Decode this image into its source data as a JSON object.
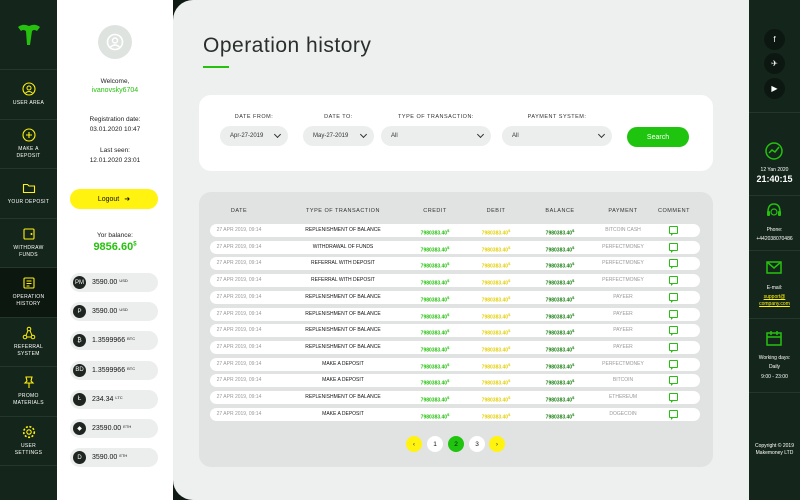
{
  "leftnav": {
    "items": [
      {
        "label": "User area",
        "icon": "user-icon"
      },
      {
        "label": "Make a deposit",
        "icon": "plus-icon"
      },
      {
        "label": "Your deposit",
        "icon": "folder-icon"
      },
      {
        "label": "Withdraw funds",
        "icon": "wallet-icon"
      },
      {
        "label": "Operation history",
        "icon": "history-icon"
      },
      {
        "label": "Referral system",
        "icon": "network-icon"
      },
      {
        "label": "Promo materials",
        "icon": "pin-icon"
      },
      {
        "label": "User settings",
        "icon": "gear-icon"
      }
    ]
  },
  "user": {
    "welcome": "Welcome,",
    "name": "ivanovsky6704",
    "reg_label": "Registration date:",
    "reg_date": "03.01.2020 10:47",
    "seen_label": "Last seen:",
    "seen_date": "12.01.2020 23:01",
    "logout": "Logout",
    "balance_label": "Yor balance:",
    "balance": "9856.60",
    "coins": [
      {
        "glyph": "PM",
        "value": "3590.00",
        "currency": "USD"
      },
      {
        "glyph": "P",
        "value": "3590.00",
        "currency": "USD"
      },
      {
        "glyph": "₿",
        "value": "1.3599966",
        "currency": "BTC"
      },
      {
        "glyph": "BD",
        "value": "1.3599966",
        "currency": "BTC"
      },
      {
        "glyph": "Ł",
        "value": "234.34",
        "currency": "LTC"
      },
      {
        "glyph": "◆",
        "value": "23590.00",
        "currency": "ETH"
      },
      {
        "glyph": "D",
        "value": "3590.00",
        "currency": "ETH"
      }
    ]
  },
  "main": {
    "title": "Operation history",
    "filters": {
      "date_from_label": "Date from:",
      "date_from": "Apr-27-2019",
      "date_to_label": "Date to:",
      "date_to": "May-27-2019",
      "type_label": "Type of transaction:",
      "type": "All",
      "payment_label": "Payment system:",
      "payment": "All",
      "search": "Search"
    },
    "table": {
      "headers": [
        "Date",
        "Type of transaction",
        "Credit",
        "Debit",
        "Balance",
        "Payment",
        "Comment"
      ],
      "rows": [
        {
          "date": "27 APR 2019, 09:14",
          "type": "Replenishment of balance",
          "credit": "7980383.40",
          "debit": "7980383.40",
          "balance": "7980383.40",
          "payment": "Bitcoin cash"
        },
        {
          "date": "27 APR 2019, 09:14",
          "type": "Withdrawal of funds",
          "credit": "7980383.40",
          "debit": "7980383.40",
          "balance": "7980383.40",
          "payment": "Perfectmoney"
        },
        {
          "date": "27 APR 2019, 09:14",
          "type": "Referral with deposit",
          "credit": "7980383.40",
          "debit": "7980383.40",
          "balance": "7980383.40",
          "payment": "Perfectmoney"
        },
        {
          "date": "27 APR 2019, 09:14",
          "type": "Referral with deposit",
          "credit": "7980383.40",
          "debit": "7980383.40",
          "balance": "7980383.40",
          "payment": "Perfectmoney"
        },
        {
          "date": "27 APR 2019, 09:14",
          "type": "Replenishment of balance",
          "credit": "7980383.40",
          "debit": "7980383.40",
          "balance": "7980383.40",
          "payment": "Payeer"
        },
        {
          "date": "27 APR 2019, 09:14",
          "type": "Replenishment of balance",
          "credit": "7980383.40",
          "debit": "7980383.40",
          "balance": "7980383.40",
          "payment": "Payeer"
        },
        {
          "date": "27 APR 2019, 09:14",
          "type": "Replenishment of balance",
          "credit": "7980383.40",
          "debit": "7980383.40",
          "balance": "7980383.40",
          "payment": "Payeer"
        },
        {
          "date": "27 APR 2019, 09:14",
          "type": "Replenishment of balance",
          "credit": "7980383.40",
          "debit": "7980383.40",
          "balance": "7980383.40",
          "payment": "Payeer"
        },
        {
          "date": "27 APR 2019, 09:14",
          "type": "Make a deposit",
          "credit": "7980383.40",
          "debit": "7980383.40",
          "balance": "7980383.40",
          "payment": "Perfectmoney"
        },
        {
          "date": "27 APR 2019, 09:14",
          "type": "Make a deposit",
          "credit": "7980383.40",
          "debit": "7980383.40",
          "balance": "7980383.40",
          "payment": "Bitcoin"
        },
        {
          "date": "27 APR 2019, 09:14",
          "type": "Replenishment of balance",
          "credit": "7980383.40",
          "debit": "7980383.40",
          "balance": "7980383.40",
          "payment": "Ethereum"
        },
        {
          "date": "27 APR 2019, 09:14",
          "type": "Make a deposit",
          "credit": "7980383.40",
          "debit": "7980383.40",
          "balance": "7980383.40",
          "payment": "Dogecoin"
        }
      ]
    },
    "pagination": {
      "prev": "‹",
      "pages": [
        "1",
        "2",
        "3"
      ],
      "active": "2",
      "next": "›"
    }
  },
  "rightbar": {
    "socials": [
      "f",
      "✈",
      "▶"
    ],
    "date": "12 Yan 2020",
    "time": "21:40:15",
    "phone_label": "Phone:",
    "phone": "+442038070486",
    "email_label": "E-mail:",
    "email": "support@ company.com",
    "hours_label": "Working days:",
    "hours_days": "Daily",
    "hours_time": "9:00 - 23:00",
    "copyright": "Copyright © 2019 Makemoney LTD"
  }
}
